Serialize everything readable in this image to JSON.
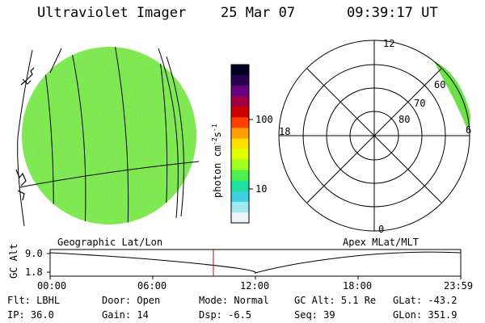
{
  "header": {
    "instrument": "Ultraviolet Imager",
    "date": "25 Mar 07",
    "time": "09:39:17 UT"
  },
  "colorbar": {
    "unit_label": "photon cm",
    "unit_exp1": "-2",
    "unit_mid": "s",
    "unit_exp2": "-1",
    "tick_100": "100",
    "tick_10": "10",
    "colors": [
      "#000020",
      "#2a0050",
      "#6a0080",
      "#a00040",
      "#d00000",
      "#ff4000",
      "#ffa000",
      "#ffe000",
      "#e0ff00",
      "#a0ff20",
      "#50f050",
      "#20e0a0",
      "#40d0e0",
      "#a0e8f0",
      "#e8f4f8"
    ]
  },
  "globe": {
    "fill_color": "#7de84a",
    "label": "Geographic Lat/Lon"
  },
  "polar": {
    "label": "Apex MLat/MLT",
    "mlt_labels": {
      "top": "12",
      "left": "18",
      "right": "6",
      "bottom": "0"
    },
    "lat_labels": [
      "60",
      "70",
      "80"
    ],
    "aurora_color": "#6ee04a"
  },
  "timeline": {
    "axis_label": "GC Alt",
    "y_top": "9.0",
    "y_bottom": "1.8",
    "ticks": [
      "00:00",
      "06:00",
      "12:00",
      "18:00",
      "23:59"
    ],
    "marker_color": "#cc0000"
  },
  "footer": {
    "row1": [
      {
        "label": "Flt:",
        "value": "LBHL"
      },
      {
        "label": "Door:",
        "value": "Open"
      },
      {
        "label": "Mode:",
        "value": "Normal"
      },
      {
        "label": "GC Alt:",
        "value": "5.1 Re"
      },
      {
        "label": "GLat:",
        "value": "-43.2"
      }
    ],
    "row2": [
      {
        "label": "IP:",
        "value": "36.0"
      },
      {
        "label": "Gain:",
        "value": "14"
      },
      {
        "label": "Dsp:",
        "value": "-6.5"
      },
      {
        "label": "Seq:",
        "value": "39"
      },
      {
        "label": "GLon:",
        "value": "351.9"
      }
    ]
  }
}
